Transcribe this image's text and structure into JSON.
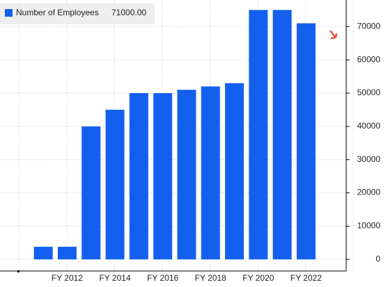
{
  "chart_data": {
    "type": "bar",
    "categories": [
      null,
      "FY 2012",
      null,
      "FY 2014",
      null,
      "FY 2016",
      null,
      "FY 2018",
      null,
      "FY 2020",
      null,
      "FY 2022"
    ],
    "series": [
      {
        "name": "Number of Employees",
        "color": "#1360ee",
        "values": [
          3800,
          3800,
          40000,
          45000,
          50000,
          50000,
          51000,
          52000,
          53000,
          75000,
          75000,
          71000
        ]
      }
    ],
    "legend_value": "71000.00",
    "ylim": [
      -3500,
      78000
    ],
    "yticks": [
      0,
      10000,
      20000,
      30000,
      40000,
      50000,
      60000,
      70000
    ],
    "grid": true
  }
}
